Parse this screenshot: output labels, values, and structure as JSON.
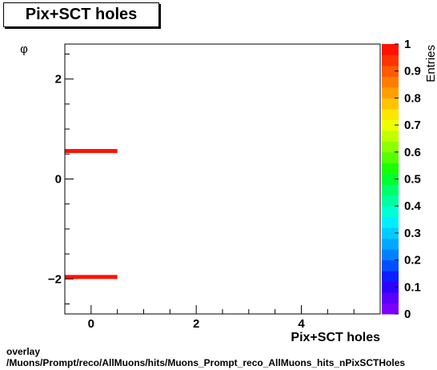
{
  "page": {
    "title": "Pix+SCT holes",
    "footer_line1": "overlay",
    "footer_line2": "/Muons/Prompt/reco/AllMuons/hits/Muons_Prompt_reco_AllMuons_hits_nPixSCTHoles"
  },
  "chart_data": {
    "type": "heatmap",
    "title": "Pix+SCT holes",
    "xlabel": "Pix+SCT holes",
    "ylabel": "φ",
    "zlabel": "Entries",
    "xlim": [
      -0.5,
      5.5
    ],
    "ylim": [
      -2.7,
      2.7
    ],
    "zlim": [
      0,
      1
    ],
    "x_ticks": [
      0,
      2,
      4
    ],
    "y_ticks": [
      -2,
      0,
      2
    ],
    "z_ticks": [
      "0",
      "0.1",
      "0.2",
      "0.3",
      "0.4",
      "0.5",
      "0.6",
      "0.7",
      "0.8",
      "0.9",
      "1"
    ],
    "cells": [
      {
        "x": [
          -0.5,
          0.5
        ],
        "y": [
          0.55,
          0.6
        ],
        "value": 1
      },
      {
        "x": [
          -0.5,
          0.5
        ],
        "y": [
          -1.97,
          -1.92
        ],
        "value": 1
      }
    ],
    "palette": [
      "#7a00ff",
      "#5a00ff",
      "#2f00ff",
      "#0a1eff",
      "#0050ff",
      "#0080ff",
      "#00a8ff",
      "#00ccff",
      "#00eeff",
      "#00ffd5",
      "#00ffa0",
      "#00ff6a",
      "#00ff30",
      "#1aff00",
      "#55ff00",
      "#8cff00",
      "#c0ff00",
      "#ecff00",
      "#ffe600",
      "#ffc300",
      "#ffa000",
      "#ff7d00",
      "#ff5a00",
      "#ff3400",
      "#ff1200"
    ]
  }
}
